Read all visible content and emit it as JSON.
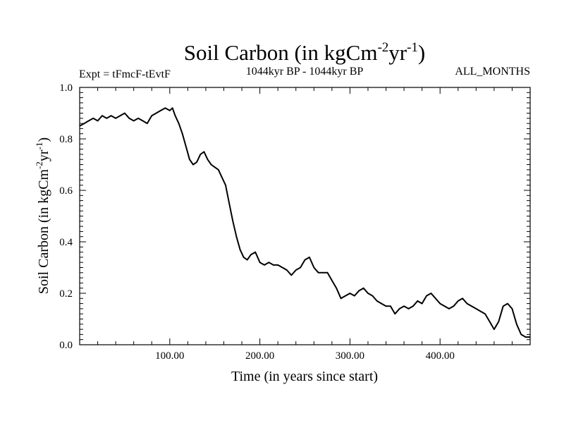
{
  "header": {
    "title_main": "Soil Carbon (in kgCm",
    "title_sup1": "-2",
    "title_mid": "yr",
    "title_sup2": "-1",
    "title_end": ")",
    "expt": "Expt = tFmcF-tEvtF",
    "period": "1044kyr BP - 1044kyr BP",
    "months": "ALL_MONTHS"
  },
  "chart_data": {
    "type": "line",
    "title": "Soil Carbon (in kgCm-2yr-1)",
    "xlabel": "Time (in years since start)",
    "ylabel": "Soil Carbon (in kgCm-2yr-1)",
    "ylabel_parts": {
      "main": "Soil Carbon (in kgCm",
      "sup1": "-2",
      "mid": "yr",
      "sup2": "-1",
      "end": ")"
    },
    "xlim": [
      0,
      500
    ],
    "ylim": [
      0.0,
      1.0
    ],
    "xticks": [
      100,
      200,
      300,
      400
    ],
    "xtick_labels": [
      "100.00",
      "200.00",
      "300.00",
      "400.00"
    ],
    "yticks": [
      0.0,
      0.2,
      0.4,
      0.6,
      0.8,
      1.0
    ],
    "ytick_labels": [
      "0.0",
      "0.2",
      "0.4",
      "0.6",
      "0.8",
      "1.0"
    ],
    "series": [
      {
        "name": "Soil Carbon",
        "color": "#000000",
        "x": [
          0,
          5,
          10,
          15,
          20,
          25,
          30,
          35,
          40,
          45,
          50,
          55,
          60,
          65,
          70,
          75,
          80,
          85,
          90,
          95,
          100,
          103,
          106,
          110,
          114,
          118,
          122,
          126,
          130,
          134,
          138,
          142,
          146,
          150,
          154,
          158,
          162,
          166,
          170,
          174,
          178,
          182,
          186,
          190,
          195,
          200,
          205,
          210,
          215,
          220,
          225,
          230,
          235,
          240,
          245,
          250,
          255,
          260,
          265,
          270,
          275,
          280,
          285,
          290,
          295,
          300,
          305,
          310,
          315,
          320,
          325,
          330,
          335,
          340,
          345,
          350,
          355,
          360,
          365,
          370,
          375,
          380,
          385,
          390,
          395,
          400,
          405,
          410,
          415,
          420,
          425,
          430,
          435,
          440,
          445,
          450,
          455,
          460,
          465,
          470,
          475,
          480,
          485,
          490,
          495,
          500
        ],
        "y": [
          0.85,
          0.86,
          0.87,
          0.88,
          0.87,
          0.89,
          0.88,
          0.89,
          0.88,
          0.89,
          0.9,
          0.88,
          0.87,
          0.88,
          0.87,
          0.86,
          0.89,
          0.9,
          0.91,
          0.92,
          0.91,
          0.92,
          0.89,
          0.86,
          0.82,
          0.77,
          0.72,
          0.7,
          0.71,
          0.74,
          0.75,
          0.72,
          0.7,
          0.69,
          0.68,
          0.65,
          0.62,
          0.55,
          0.48,
          0.42,
          0.37,
          0.34,
          0.33,
          0.35,
          0.36,
          0.32,
          0.31,
          0.32,
          0.31,
          0.31,
          0.3,
          0.29,
          0.27,
          0.29,
          0.3,
          0.33,
          0.34,
          0.3,
          0.28,
          0.28,
          0.28,
          0.25,
          0.22,
          0.18,
          0.19,
          0.2,
          0.19,
          0.21,
          0.22,
          0.2,
          0.19,
          0.17,
          0.16,
          0.15,
          0.15,
          0.12,
          0.14,
          0.15,
          0.14,
          0.15,
          0.17,
          0.16,
          0.19,
          0.2,
          0.18,
          0.16,
          0.15,
          0.14,
          0.15,
          0.17,
          0.18,
          0.16,
          0.15,
          0.14,
          0.13,
          0.12,
          0.09,
          0.06,
          0.09,
          0.15,
          0.16,
          0.14,
          0.08,
          0.04,
          0.03,
          0.03
        ]
      }
    ]
  }
}
